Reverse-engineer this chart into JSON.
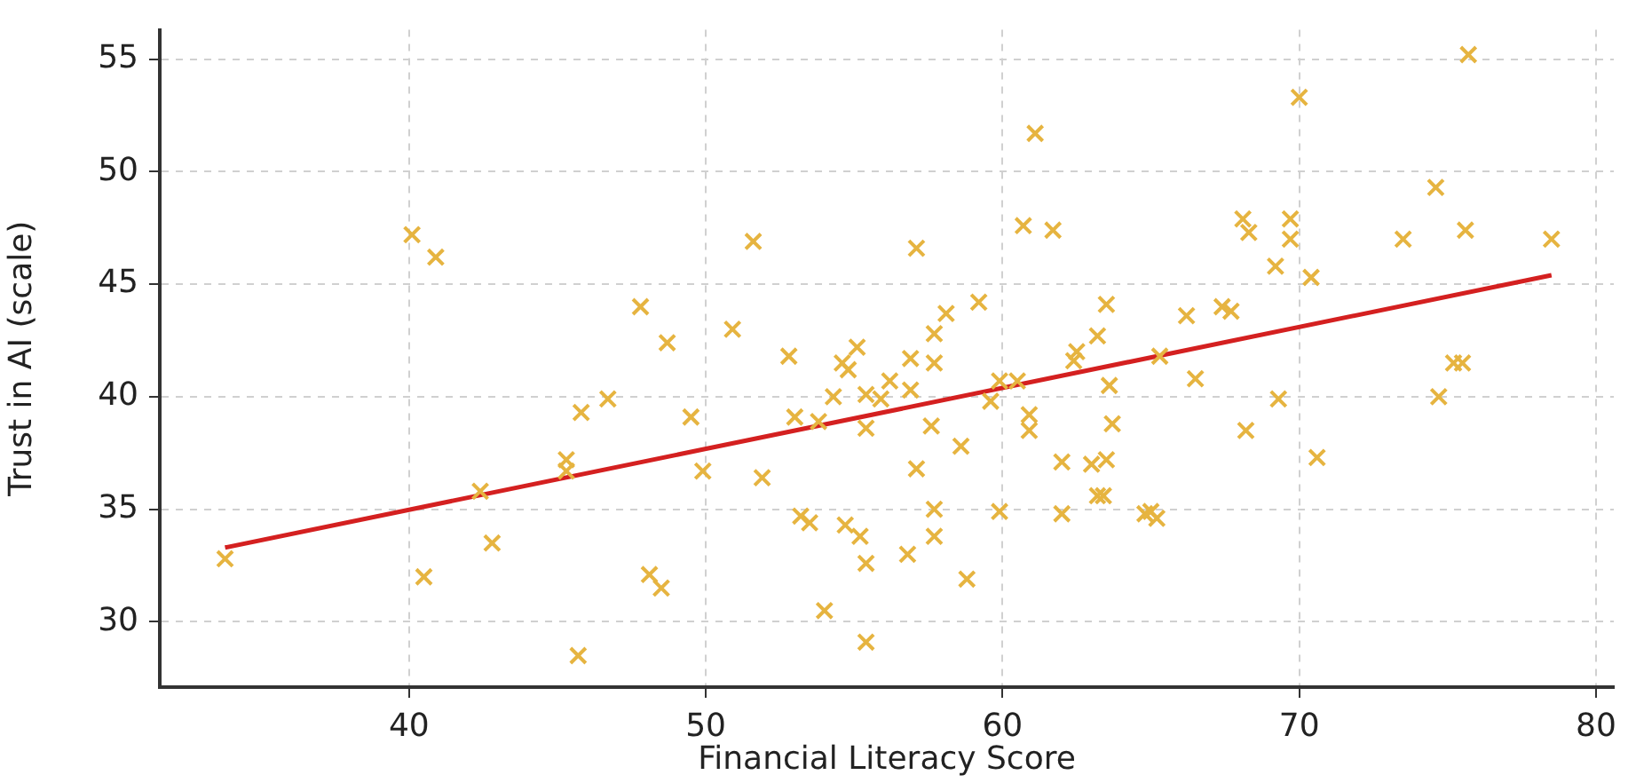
{
  "chart_data": {
    "type": "scatter",
    "xlabel": "Financial Literacy Score",
    "ylabel": "Trust in AI (scale)",
    "xlim": [
      31.6,
      80.6
    ],
    "ylim": [
      27.1,
      56.3
    ],
    "xticks": [
      40,
      50,
      60,
      70,
      80
    ],
    "yticks": [
      30,
      35,
      40,
      45,
      50,
      55
    ],
    "grid": true,
    "series": [
      {
        "marker": "cross",
        "color": "#e6b440",
        "x": [
          33.8,
          40.1,
          40.9,
          40.5,
          42.4,
          42.8,
          47.8,
          48.7,
          46.7,
          45.8,
          45.3,
          45.3,
          45.7,
          48.1,
          48.5,
          61.1,
          60.7,
          61.7,
          51.6,
          57.1,
          59.2,
          63.5,
          50.9,
          58.1,
          57.7,
          52.8,
          55.1,
          54.6,
          54.8,
          56.9,
          57.7,
          63.2,
          62.5,
          62.4,
          56.2,
          54.3,
          55.4,
          55.9,
          56.9,
          59.9,
          60.5,
          59.6,
          63.6,
          49.5,
          53.0,
          53.8,
          55.4,
          57.6,
          60.9,
          60.9,
          63.7,
          58.6,
          49.9,
          51.9,
          57.1,
          62.0,
          63.0,
          63.5,
          63.2,
          63.4,
          57.7,
          59.9,
          62.0,
          64.8,
          53.2,
          53.5,
          54.7,
          55.2,
          57.7,
          56.8,
          55.4,
          58.8,
          54.0,
          55.4,
          75.7,
          70.0,
          74.6,
          68.1,
          68.3,
          69.7,
          69.7,
          73.5,
          75.6,
          78.5,
          69.2,
          70.4,
          66.2,
          67.4,
          67.7,
          65.3,
          66.5,
          75.2,
          75.5,
          69.3,
          74.7,
          68.2,
          70.6,
          65.0,
          65.2
        ],
        "values": [
          32.8,
          47.2,
          46.2,
          32.0,
          35.8,
          33.5,
          44.0,
          42.4,
          39.9,
          39.3,
          37.2,
          36.7,
          28.5,
          32.1,
          31.5,
          51.7,
          47.6,
          47.4,
          46.9,
          46.6,
          44.2,
          44.1,
          43.0,
          43.7,
          42.8,
          41.8,
          42.2,
          41.5,
          41.2,
          41.7,
          41.5,
          42.7,
          42.0,
          41.6,
          40.7,
          40.0,
          40.1,
          39.9,
          40.3,
          40.7,
          40.7,
          39.8,
          40.5,
          39.1,
          39.1,
          38.9,
          38.6,
          38.7,
          39.2,
          38.5,
          38.8,
          37.8,
          36.7,
          36.4,
          36.8,
          37.1,
          37.0,
          37.2,
          35.6,
          35.6,
          35.0,
          34.9,
          34.8,
          34.8,
          34.7,
          34.4,
          34.3,
          33.8,
          33.8,
          33.0,
          32.6,
          31.9,
          30.5,
          29.1,
          55.2,
          53.3,
          49.3,
          47.9,
          47.3,
          47.9,
          47.0,
          47.0,
          47.4,
          47.0,
          45.8,
          45.3,
          43.6,
          44.0,
          43.8,
          41.8,
          40.8,
          41.5,
          41.5,
          39.9,
          40.0,
          38.5,
          37.3,
          34.9,
          34.6
        ]
      },
      {
        "type": "line",
        "marker": "none",
        "color": "#d42020",
        "x": [
          33.8,
          78.5
        ],
        "values": [
          33.3,
          45.4
        ]
      }
    ]
  }
}
